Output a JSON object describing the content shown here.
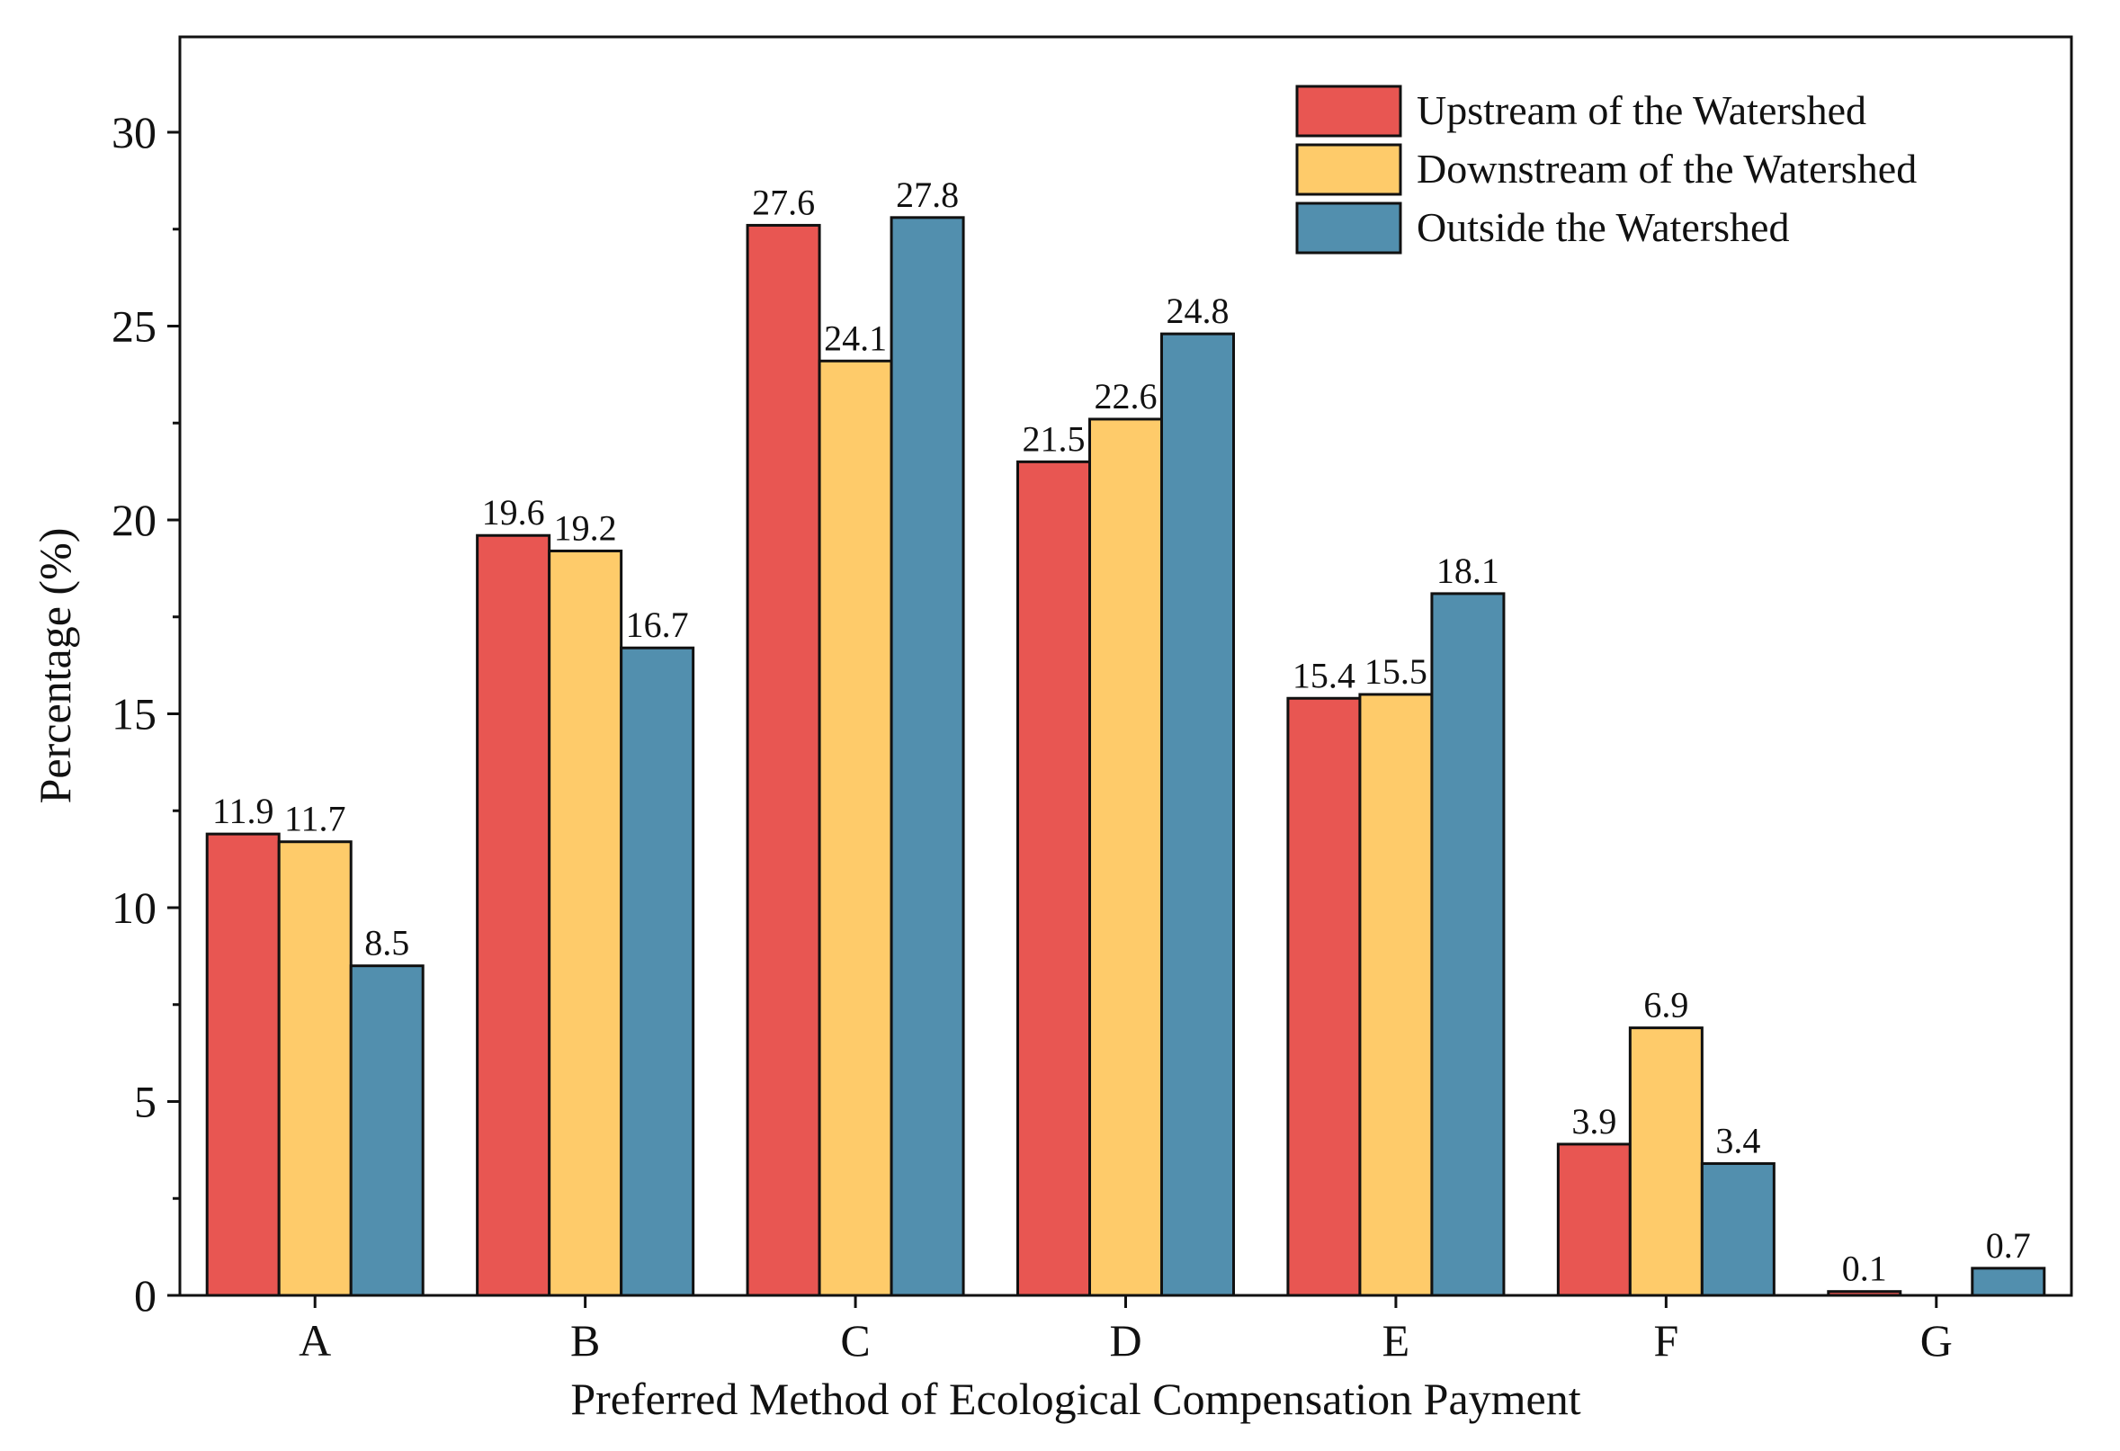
{
  "chart_data": {
    "type": "bar",
    "title": "",
    "xlabel": "Preferred Method of Ecological Compensation Payment",
    "ylabel": "Percentage (%)",
    "categories": [
      "A",
      "B",
      "C",
      "D",
      "E",
      "F",
      "G"
    ],
    "series": [
      {
        "name": "Upstream of the Watershed",
        "color": "#e85652",
        "values": [
          11.9,
          19.6,
          27.6,
          21.5,
          15.4,
          3.9,
          0.1
        ],
        "labels": [
          "11.9",
          "19.6",
          "27.6",
          "21.5",
          "15.4",
          "3.9",
          "0.1"
        ]
      },
      {
        "name": "Downstream of the Watershed",
        "color": "#fecb6a",
        "values": [
          11.7,
          19.2,
          24.1,
          22.6,
          15.5,
          6.9,
          0
        ],
        "labels": [
          "11.7",
          "19.2",
          "24.1",
          "22.6",
          "15.5",
          "6.9",
          ""
        ]
      },
      {
        "name": "Outside the Watershed",
        "color": "#528fae",
        "values": [
          8.5,
          16.7,
          27.8,
          24.8,
          18.1,
          3.4,
          0.7
        ],
        "labels": [
          "8.5",
          "16.7",
          "27.8",
          "24.8",
          "18.1",
          "3.4",
          "0.7"
        ]
      }
    ],
    "ylim": [
      0,
      32.5
    ],
    "yticks": [
      0,
      5,
      10,
      15,
      20,
      25,
      30
    ],
    "ytick_labels": [
      "0",
      "5",
      "10",
      "15",
      "20",
      "25",
      "30"
    ],
    "grid": false,
    "legend_position": "top-right"
  }
}
